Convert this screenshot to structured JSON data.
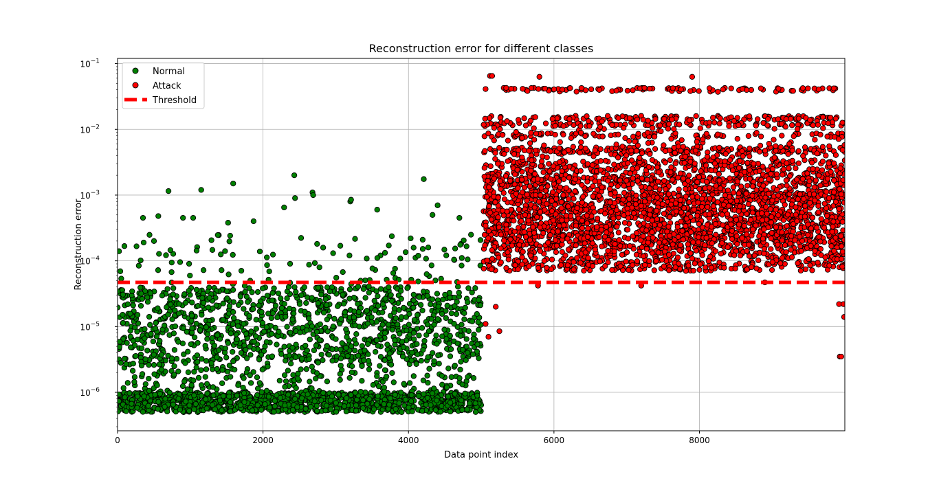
{
  "chart_data": {
    "type": "scatter",
    "title": "Reconstruction error for different classes",
    "xlabel": "Data point index",
    "ylabel": "Reconstruction error",
    "xlim": [
      0,
      9999
    ],
    "ylim": [
      2.6e-07,
      0.12
    ],
    "yscale": "log",
    "grid": true,
    "legend_position": "top-left",
    "x_ticks": [
      0,
      2000,
      4000,
      6000,
      8000
    ],
    "x_tick_labels": [
      "0",
      "2000",
      "4000",
      "6000",
      "8000"
    ],
    "y_ticks": [
      1e-06,
      1e-05,
      0.0001,
      0.001,
      0.01,
      0.1
    ],
    "y_tick_labels": [
      {
        "base": "10",
        "exp": "−6"
      },
      {
        "base": "10",
        "exp": "−5"
      },
      {
        "base": "10",
        "exp": "−4"
      },
      {
        "base": "10",
        "exp": "−3"
      },
      {
        "base": "10",
        "exp": "−2"
      },
      {
        "base": "10",
        "exp": "−1"
      }
    ],
    "series": [
      {
        "name": "Normal",
        "color": "#008000",
        "edge_color": "#000000",
        "marker": "circle",
        "x_range": [
          0,
          5000
        ],
        "typical_range": [
          4.5e-07,
          4e-05
        ],
        "dense_band": [
          5e-07,
          1e-06
        ],
        "outliers": [
          {
            "x": 20,
            "y": 0.00014
          },
          {
            "x": 350,
            "y": 0.00045
          },
          {
            "x": 560,
            "y": 0.00048
          },
          {
            "x": 700,
            "y": 0.00115
          },
          {
            "x": 900,
            "y": 0.00045
          },
          {
            "x": 1040,
            "y": 0.00045
          },
          {
            "x": 1150,
            "y": 0.0012
          },
          {
            "x": 1520,
            "y": 0.00038
          },
          {
            "x": 1590,
            "y": 0.0015
          },
          {
            "x": 1870,
            "y": 0.0004
          },
          {
            "x": 2290,
            "y": 0.00065
          },
          {
            "x": 2430,
            "y": 0.002
          },
          {
            "x": 2440,
            "y": 0.0009
          },
          {
            "x": 2680,
            "y": 0.0011
          },
          {
            "x": 2690,
            "y": 0.001
          },
          {
            "x": 3200,
            "y": 0.0008
          },
          {
            "x": 3210,
            "y": 0.00085
          },
          {
            "x": 3570,
            "y": 0.0006
          },
          {
            "x": 4030,
            "y": 0.00022
          },
          {
            "x": 4210,
            "y": 0.00175
          },
          {
            "x": 4330,
            "y": 0.0005
          },
          {
            "x": 4400,
            "y": 0.0007
          },
          {
            "x": 4700,
            "y": 0.00045
          },
          {
            "x": 4860,
            "y": 0.00025
          }
        ]
      },
      {
        "name": "Attack",
        "color": "#ff0000",
        "edge_color": "#000000",
        "marker": "circle",
        "x_range": [
          5000,
          9999
        ],
        "typical_range": [
          7e-05,
          0.015
        ],
        "dense_band": [
          0.00015,
          0.0012
        ],
        "levels": [
          0.04,
          0.015,
          0.012,
          0.0082,
          0.005,
          0.0045,
          0.0032,
          0.0017
        ],
        "outliers": [
          {
            "x": 5120,
            "y": 0.065
          },
          {
            "x": 5150,
            "y": 0.065
          },
          {
            "x": 5800,
            "y": 0.063
          },
          {
            "x": 7900,
            "y": 0.063
          },
          {
            "x": 5250,
            "y": 8.5e-06
          },
          {
            "x": 5100,
            "y": 7e-06
          },
          {
            "x": 5200,
            "y": 2e-05
          },
          {
            "x": 5060,
            "y": 1.1e-05
          },
          {
            "x": 5780,
            "y": 4.2e-05
          },
          {
            "x": 7200,
            "y": 4.2e-05
          },
          {
            "x": 8900,
            "y": 4.7e-05
          },
          {
            "x": 9930,
            "y": 3.5e-06
          },
          {
            "x": 9950,
            "y": 3.5e-06
          },
          {
            "x": 9920,
            "y": 2.2e-05
          },
          {
            "x": 9990,
            "y": 1.4e-05
          },
          {
            "x": 9980,
            "y": 2.2e-05
          }
        ]
      }
    ],
    "threshold": {
      "name": "Threshold",
      "y": 4.7e-05,
      "color": "#ff0000",
      "style": "dashed"
    }
  }
}
